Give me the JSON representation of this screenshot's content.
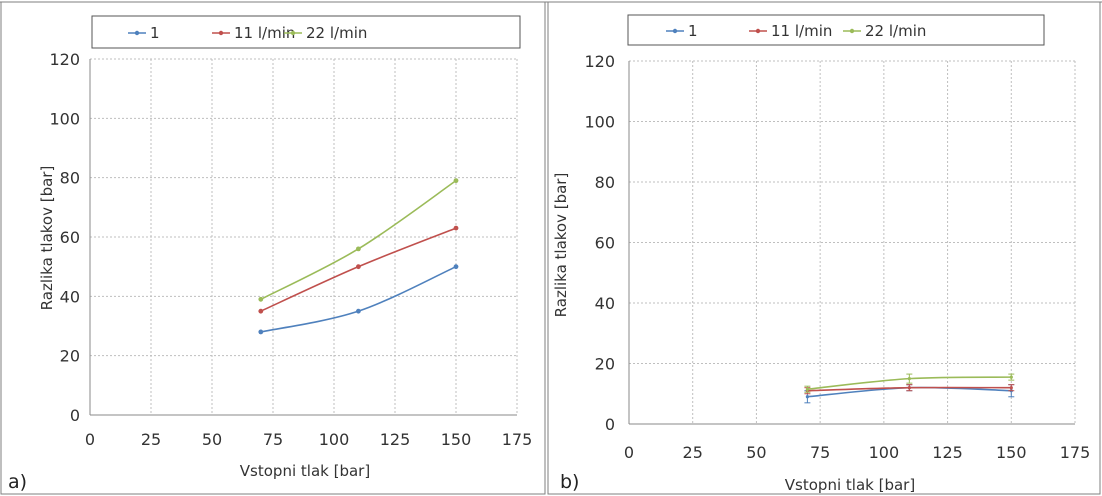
{
  "chart_data": [
    {
      "type": "line",
      "panel_label": "a)",
      "xlabel": "Vstopni tlak [bar]",
      "ylabel": "Razlika tlakov [bar]",
      "xlim": [
        0,
        175
      ],
      "ylim": [
        0,
        120
      ],
      "xticks": [
        "0",
        "25",
        "50",
        "75",
        "100",
        "125",
        "150",
        "175"
      ],
      "yticks": [
        "0",
        "20",
        "40",
        "60",
        "80",
        "100",
        "120"
      ],
      "grid": true,
      "legend_position": "top",
      "x": [
        70,
        110,
        150
      ],
      "series": [
        {
          "name": "1",
          "color": "#4f81bd",
          "values": [
            28,
            35,
            50
          ]
        },
        {
          "name": "11 l/min",
          "color": "#c0504d",
          "values": [
            35,
            50,
            63
          ]
        },
        {
          "name": "22 l/min",
          "color": "#9bbb59",
          "values": [
            39,
            56,
            79
          ]
        }
      ]
    },
    {
      "type": "line",
      "panel_label": "b)",
      "xlabel": "Vstopni tlak [bar]",
      "ylabel": "Razlika tlakov [bar]",
      "xlim": [
        0,
        175
      ],
      "ylim": [
        0,
        120
      ],
      "xticks": [
        "0",
        "25",
        "50",
        "75",
        "100",
        "125",
        "150",
        "175"
      ],
      "yticks": [
        "0",
        "20",
        "40",
        "60",
        "80",
        "100",
        "120"
      ],
      "grid": true,
      "legend_position": "top",
      "error_bars": true,
      "x": [
        70,
        110,
        150
      ],
      "series": [
        {
          "name": "1",
          "color": "#4f81bd",
          "values": [
            9,
            12,
            11
          ],
          "error": [
            2,
            1,
            2
          ]
        },
        {
          "name": "11 l/min",
          "color": "#c0504d",
          "values": [
            11,
            12,
            12
          ],
          "error": [
            1,
            1,
            1
          ]
        },
        {
          "name": "22 l/min",
          "color": "#9bbb59",
          "values": [
            11.5,
            15,
            15.5
          ],
          "error": [
            1,
            1.5,
            1
          ]
        }
      ]
    }
  ]
}
